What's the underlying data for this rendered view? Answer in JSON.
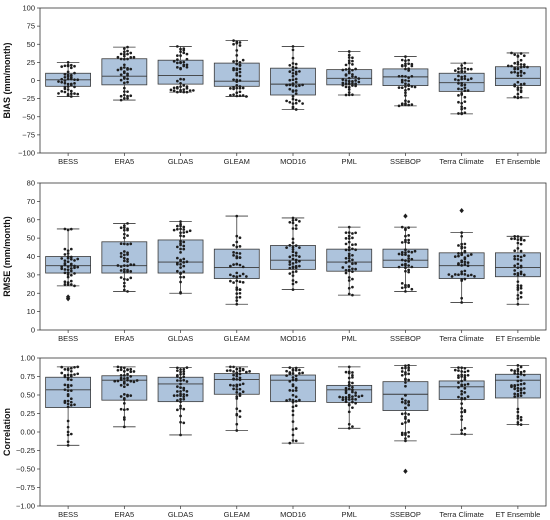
{
  "figure": {
    "colors": {
      "box_fill": "#adc3dc",
      "box_edge": "#3a3a3a",
      "points": "#1e1e1e",
      "frame": "#333333"
    }
  },
  "chart_data": [
    {
      "type": "box",
      "ylabel": "BIAS (mm/month)",
      "ylim": [
        -100,
        100
      ],
      "yticks": [
        "100",
        "75",
        "50",
        "25",
        "0",
        "−25",
        "−50",
        "−75",
        "−100"
      ],
      "ytick_values": [
        100,
        75,
        50,
        25,
        0,
        -25,
        -50,
        -75,
        -100
      ],
      "categories": [
        "BESS",
        "ERA5",
        "GLDAS",
        "GLEAM",
        "MOD16",
        "PML",
        "SSEBOP",
        "Terra Climate",
        "ET Ensemble"
      ],
      "series": [
        {
          "category": "BESS",
          "whisker_low": -22,
          "q1": -8,
          "median": 1,
          "q3": 10,
          "whisker_high": 25,
          "outliers": []
        },
        {
          "category": "ERA5",
          "whisker_low": -27,
          "q1": -6,
          "median": 6,
          "q3": 30,
          "whisker_high": 46,
          "outliers": []
        },
        {
          "category": "GLDAS",
          "whisker_low": -16,
          "q1": -5,
          "median": 7,
          "q3": 28,
          "whisker_high": 47,
          "outliers": []
        },
        {
          "category": "GLEAM",
          "whisker_low": -22,
          "q1": -8,
          "median": -1,
          "q3": 24,
          "whisker_high": 55,
          "outliers": []
        },
        {
          "category": "MOD16",
          "whisker_low": -40,
          "q1": -20,
          "median": -5,
          "q3": 17,
          "whisker_high": 47,
          "outliers": []
        },
        {
          "category": "PML",
          "whisker_low": -20,
          "q1": -6,
          "median": 3,
          "q3": 15,
          "whisker_high": 40,
          "outliers": []
        },
        {
          "category": "SSEBOP",
          "whisker_low": -35,
          "q1": -7,
          "median": 5,
          "q3": 16,
          "whisker_high": 33,
          "outliers": []
        },
        {
          "category": "Terra Climate",
          "whisker_low": -46,
          "q1": -15,
          "median": -3,
          "q3": 10,
          "whisker_high": 24,
          "outliers": []
        },
        {
          "category": "ET Ensemble",
          "whisker_low": -24,
          "q1": -7,
          "median": 3,
          "q3": 19,
          "whisker_high": 38,
          "outliers": []
        }
      ]
    },
    {
      "type": "box",
      "ylabel": "RMSE (mm/month)",
      "ylim": [
        0,
        80
      ],
      "yticks": [
        "80",
        "70",
        "60",
        "50",
        "40",
        "30",
        "20",
        "10",
        "0"
      ],
      "ytick_values": [
        80,
        70,
        60,
        50,
        40,
        30,
        20,
        10,
        0
      ],
      "categories": [
        "BESS",
        "ERA5",
        "GLDAS",
        "GLEAM",
        "MOD16",
        "PML",
        "SSEBOP",
        "Terra Climate",
        "ET Ensemble"
      ],
      "series": [
        {
          "category": "BESS",
          "whisker_low": 24,
          "q1": 31,
          "median": 35,
          "q3": 40,
          "whisker_high": 55,
          "outliers": [
            17,
            18
          ]
        },
        {
          "category": "ERA5",
          "whisker_low": 21,
          "q1": 31,
          "median": 35,
          "q3": 48,
          "whisker_high": 58,
          "outliers": []
        },
        {
          "category": "GLDAS",
          "whisker_low": 20,
          "q1": 31,
          "median": 37,
          "q3": 49,
          "whisker_high": 59,
          "outliers": []
        },
        {
          "category": "GLEAM",
          "whisker_low": 14,
          "q1": 28,
          "median": 34,
          "q3": 44,
          "whisker_high": 62,
          "outliers": []
        },
        {
          "category": "MOD16",
          "whisker_low": 22,
          "q1": 33,
          "median": 38,
          "q3": 46,
          "whisker_high": 61,
          "outliers": []
        },
        {
          "category": "PML",
          "whisker_low": 19,
          "q1": 32,
          "median": 37,
          "q3": 44,
          "whisker_high": 56,
          "outliers": []
        },
        {
          "category": "SSEBOP",
          "whisker_low": 21,
          "q1": 34,
          "median": 38,
          "q3": 44,
          "whisker_high": 56,
          "outliers": [
            62
          ]
        },
        {
          "category": "Terra Climate",
          "whisker_low": 15,
          "q1": 28,
          "median": 35,
          "q3": 42,
          "whisker_high": 53,
          "outliers": [
            65
          ]
        },
        {
          "category": "ET Ensemble",
          "whisker_low": 14,
          "q1": 29,
          "median": 34,
          "q3": 42,
          "whisker_high": 51,
          "outliers": []
        }
      ]
    },
    {
      "type": "box",
      "ylabel": "Correlation",
      "ylim": [
        -1.0,
        1.0
      ],
      "yticks": [
        "1.00",
        "0.75",
        "0.50",
        "0.25",
        "0.00",
        "−0.25",
        "−0.50",
        "−0.75",
        "−1.00"
      ],
      "ytick_values": [
        1.0,
        0.75,
        0.5,
        0.25,
        0.0,
        -0.25,
        -0.5,
        -0.75,
        -1.0
      ],
      "categories": [
        "BESS",
        "ERA5",
        "GLDAS",
        "GLEAM",
        "MOD16",
        "PML",
        "SSEBOP",
        "Terra Climate",
        "ET Ensemble"
      ],
      "series": [
        {
          "category": "BESS",
          "whisker_low": -0.18,
          "q1": 0.33,
          "median": 0.57,
          "q3": 0.74,
          "whisker_high": 0.88,
          "outliers": []
        },
        {
          "category": "ERA5",
          "whisker_low": 0.07,
          "q1": 0.43,
          "median": 0.7,
          "q3": 0.76,
          "whisker_high": 0.88,
          "outliers": []
        },
        {
          "category": "GLDAS",
          "whisker_low": -0.04,
          "q1": 0.41,
          "median": 0.65,
          "q3": 0.74,
          "whisker_high": 0.87,
          "outliers": []
        },
        {
          "category": "GLEAM",
          "whisker_low": 0.02,
          "q1": 0.51,
          "median": 0.71,
          "q3": 0.79,
          "whisker_high": 0.88,
          "outliers": []
        },
        {
          "category": "MOD16",
          "whisker_low": -0.15,
          "q1": 0.41,
          "median": 0.7,
          "q3": 0.77,
          "whisker_high": 0.87,
          "outliers": []
        },
        {
          "category": "PML",
          "whisker_low": 0.05,
          "q1": 0.4,
          "median": 0.57,
          "q3": 0.63,
          "whisker_high": 0.88,
          "outliers": []
        },
        {
          "category": "SSEBOP",
          "whisker_low": -0.12,
          "q1": 0.29,
          "median": 0.51,
          "q3": 0.68,
          "whisker_high": 0.9,
          "outliers": [
            -0.53
          ]
        },
        {
          "category": "Terra Climate",
          "whisker_low": -0.03,
          "q1": 0.44,
          "median": 0.61,
          "q3": 0.69,
          "whisker_high": 0.87,
          "outliers": []
        },
        {
          "category": "ET Ensemble",
          "whisker_low": 0.1,
          "q1": 0.46,
          "median": 0.7,
          "q3": 0.78,
          "whisker_high": 0.9,
          "outliers": []
        }
      ]
    }
  ]
}
